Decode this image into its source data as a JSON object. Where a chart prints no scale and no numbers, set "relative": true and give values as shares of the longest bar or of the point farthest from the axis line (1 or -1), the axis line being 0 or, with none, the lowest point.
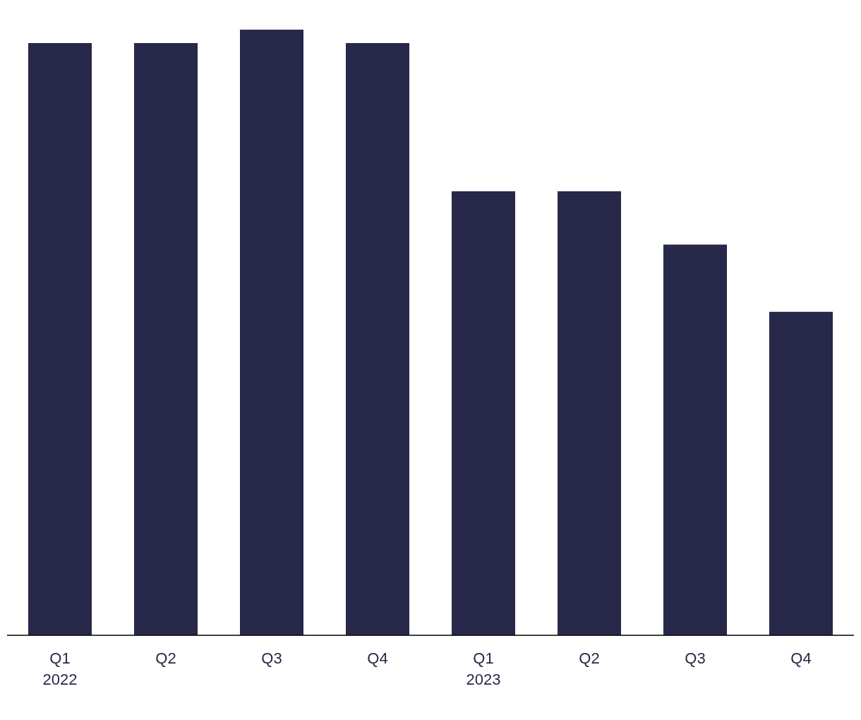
{
  "chart_data": {
    "type": "bar",
    "relative": true,
    "categories": [
      "Q1\n2022",
      "Q2",
      "Q3",
      "Q4",
      "Q1\n2023",
      "Q2",
      "Q3",
      "Q4"
    ],
    "values": [
      0.978,
      0.978,
      1,
      0.978,
      0.733,
      0.733,
      0.645,
      0.534
    ],
    "color": "#28284a",
    "grid": false,
    "legend": false
  }
}
